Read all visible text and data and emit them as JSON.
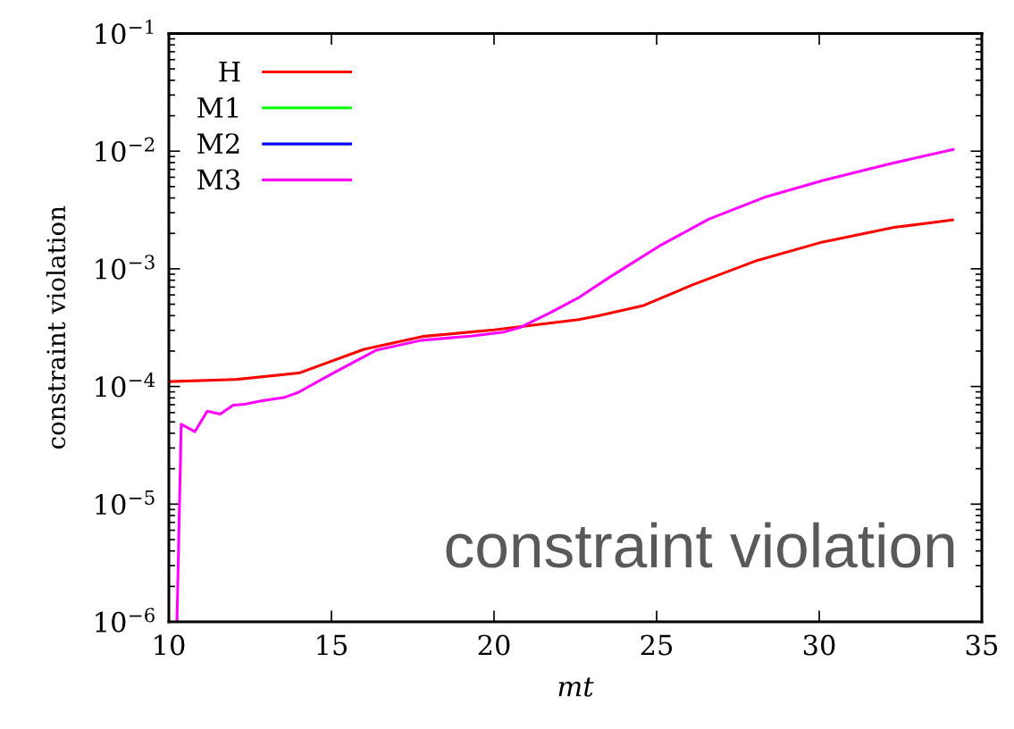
{
  "chart_data": {
    "type": "line",
    "xlabel": "mt",
    "ylabel": "constraint violation",
    "annotations": [
      "constraint violation"
    ],
    "log": "y",
    "grid": false,
    "legend": "top left",
    "line_style": "solid",
    "marker": "none",
    "xlim": [
      10,
      35
    ],
    "xticks": [
      10,
      15,
      20,
      25,
      30,
      35
    ],
    "ylim": [
      1e-06,
      0.1
    ],
    "yticks": [
      {
        "value": 1e-06,
        "label": "10$^{−6}$"
      },
      {
        "value": 1e-05,
        "label": "10$^{−5}$"
      },
      {
        "value": 0.0001,
        "label": "10$^{−4}$"
      },
      {
        "value": 0.001,
        "label": "10$^{−3}$"
      },
      {
        "value": 0.01,
        "label": "10$^{−2}$"
      },
      {
        "value": 0.1,
        "label": "10$^{−1}$"
      }
    ],
    "series": [
      {
        "name": "H",
        "color": "#ff0000",
        "x": [
          10.0,
          12.1,
          14.0,
          16.0,
          17.8,
          20.0,
          22.6,
          23.2,
          24.6,
          26.1,
          28.1,
          30.1,
          32.3,
          34.1
        ],
        "values": [
          0.00011,
          0.000115,
          0.00013,
          0.000207,
          0.000266,
          0.000303,
          0.00037,
          0.000398,
          0.000488,
          0.00073,
          0.00118,
          0.00169,
          0.00225,
          0.0026
        ]
      },
      {
        "name": "M1",
        "color": "#00ff00"
      },
      {
        "name": "M2",
        "color": "#0000ff"
      },
      {
        "name": "M3",
        "color": "#ff00ff",
        "x": [
          10.25,
          10.38,
          10.8,
          11.18,
          11.58,
          11.98,
          12.33,
          12.84,
          13.57,
          13.98,
          14.99,
          16.37,
          17.77,
          19.28,
          20.29,
          20.8,
          21.68,
          22.63,
          23.57,
          25.08,
          26.6,
          28.37,
          30.14,
          32.16,
          34.12
        ],
        "values": [
          1e-06,
          4.77e-05,
          4.13e-05,
          6.17e-05,
          5.82e-05,
          6.95e-05,
          7.05e-05,
          7.53e-05,
          8.1e-05,
          8.9e-05,
          0.000127,
          0.000203,
          0.000247,
          0.000268,
          0.00029,
          0.000317,
          0.000417,
          0.000575,
          0.000855,
          0.00156,
          0.00264,
          0.0041,
          0.00566,
          0.0078,
          0.01035
        ]
      }
    ]
  }
}
